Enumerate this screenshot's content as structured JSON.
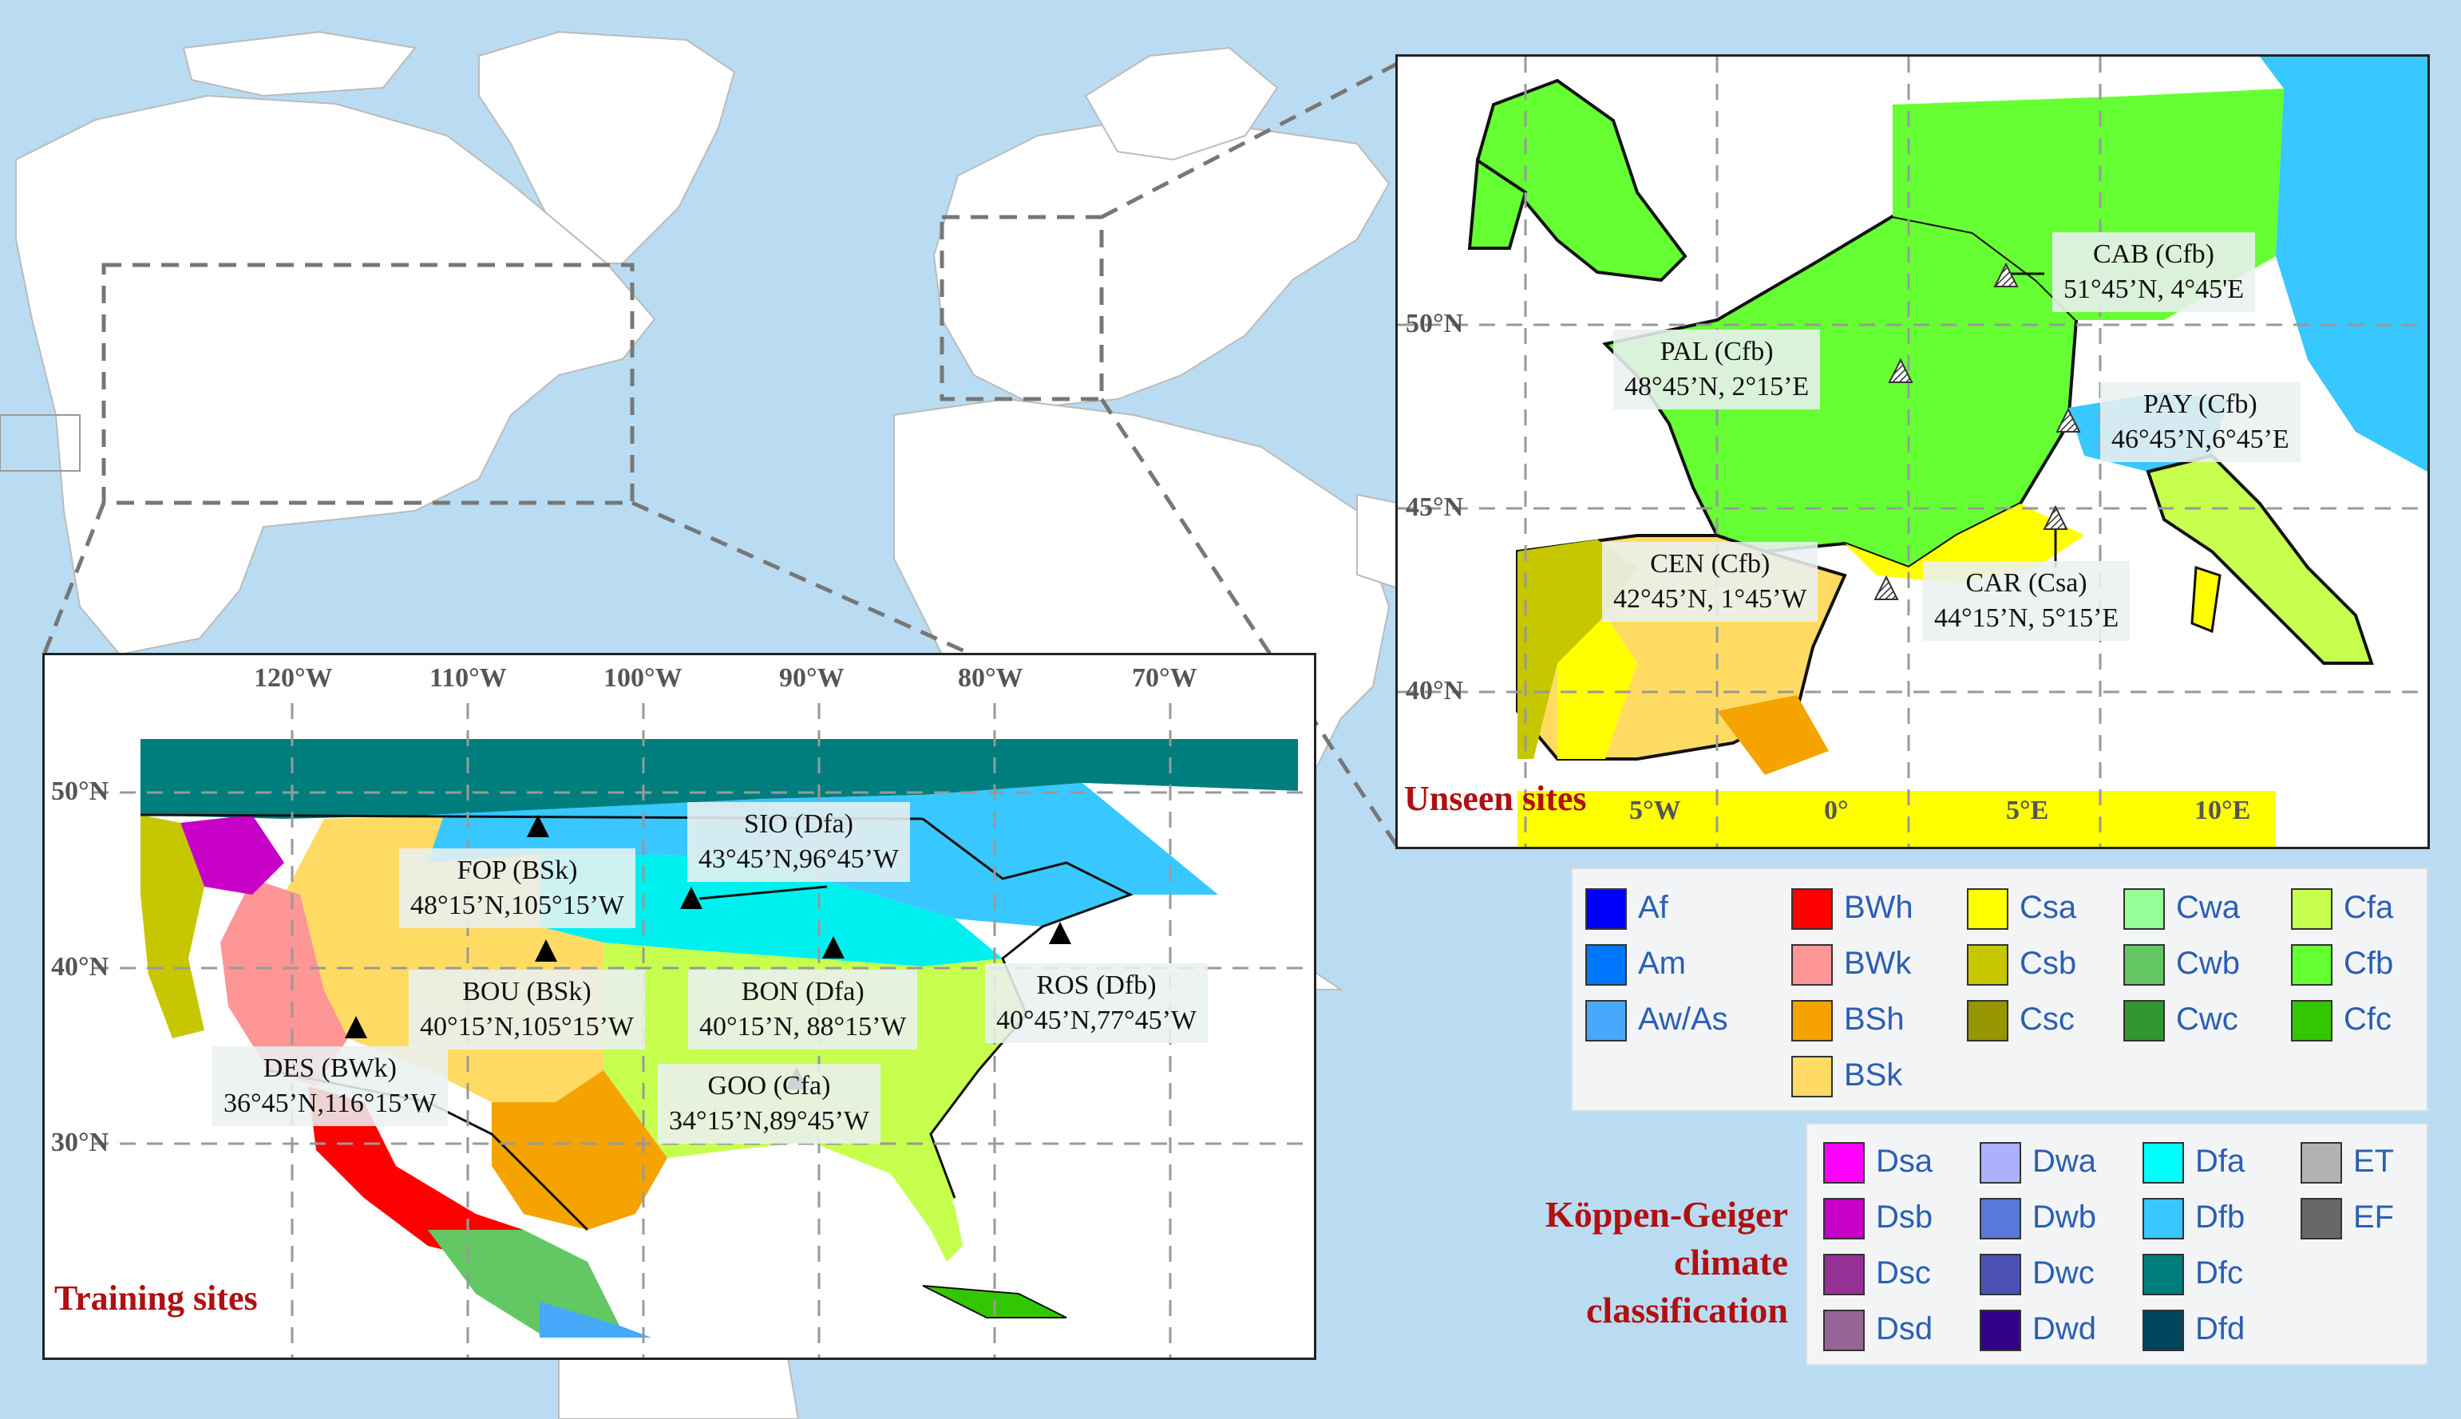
{
  "training_panel": {
    "title": "Training sites",
    "lon_ticks": [
      "120°W",
      "110°W",
      "100°W",
      "90°W",
      "80°W",
      "70°W"
    ],
    "lat_ticks": [
      "50°N",
      "40°N",
      "30°N"
    ],
    "sites": [
      {
        "name": "SIO (Dfa)",
        "coords": "43°45’N,96°45’W"
      },
      {
        "name": "FOP (BSk)",
        "coords": "48°15’N,105°15’W"
      },
      {
        "name": "BOU (BSk)",
        "coords": "40°15’N,105°15’W"
      },
      {
        "name": "BON (Dfa)",
        "coords": "40°15’N, 88°15’W"
      },
      {
        "name": "ROS (Dfb)",
        "coords": "40°45’N,77°45’W"
      },
      {
        "name": "DES (BWk)",
        "coords": "36°45’N,116°15’W"
      },
      {
        "name": "GOO (Cfa)",
        "coords": "34°15’N,89°45’W"
      }
    ]
  },
  "unseen_panel": {
    "title": "Unseen sites",
    "lon_ticks": [
      "5°W",
      "0°",
      "5°E",
      "10°E"
    ],
    "lat_ticks": [
      "50°N",
      "45°N",
      "40°N"
    ],
    "sites": [
      {
        "name": "CAB (Cfb)",
        "coords": "51°45’N, 4°45'E"
      },
      {
        "name": "PAL (Cfb)",
        "coords": "48°45’N, 2°15’E"
      },
      {
        "name": "PAY (Cfb)",
        "coords": "46°45’N,6°45’E"
      },
      {
        "name": "CEN (Cfb)",
        "coords": "42°45’N, 1°45’W"
      },
      {
        "name": "CAR (Csa)",
        "coords": "44°15’N, 5°15’E"
      }
    ]
  },
  "legend": {
    "title_lines": [
      "Köppen-Geiger",
      "climate",
      "classification"
    ],
    "top": [
      {
        "label": "Af",
        "color": "#0000fe"
      },
      {
        "label": "Am",
        "color": "#0077ff"
      },
      {
        "label": "Aw/As",
        "color": "#46a9fa"
      },
      {
        "label": "BWh",
        "color": "#fe0000"
      },
      {
        "label": "BWk",
        "color": "#fe9695"
      },
      {
        "label": "BSh",
        "color": "#f5a301"
      },
      {
        "label": "BSk",
        "color": "#ffdb63"
      },
      {
        "label": "Csa",
        "color": "#ffff00"
      },
      {
        "label": "Csb",
        "color": "#c6c700"
      },
      {
        "label": "Csc",
        "color": "#969600"
      },
      {
        "label": "Cwa",
        "color": "#96ff96"
      },
      {
        "label": "Cwb",
        "color": "#63c764"
      },
      {
        "label": "Cwc",
        "color": "#329633"
      },
      {
        "label": "Cfa",
        "color": "#c6ff4e"
      },
      {
        "label": "Cfb",
        "color": "#66ff33"
      },
      {
        "label": "Cfc",
        "color": "#33c701"
      }
    ],
    "bottom": [
      {
        "label": "Dsa",
        "color": "#ff00fe"
      },
      {
        "label": "Dsb",
        "color": "#c600c7"
      },
      {
        "label": "Dsc",
        "color": "#963295"
      },
      {
        "label": "Dsd",
        "color": "#966495"
      },
      {
        "label": "Dwa",
        "color": "#abb1ff"
      },
      {
        "label": "Dwb",
        "color": "#5a77db"
      },
      {
        "label": "Dwc",
        "color": "#4c51b5"
      },
      {
        "label": "Dwd",
        "color": "#320087"
      },
      {
        "label": "Dfa",
        "color": "#00ffff"
      },
      {
        "label": "Dfb",
        "color": "#38c7ff"
      },
      {
        "label": "Dfc",
        "color": "#007e7d"
      },
      {
        "label": "Dfd",
        "color": "#00455e"
      },
      {
        "label": "ET",
        "color": "#b2b2b2"
      },
      {
        "label": "EF",
        "color": "#686868"
      }
    ]
  }
}
